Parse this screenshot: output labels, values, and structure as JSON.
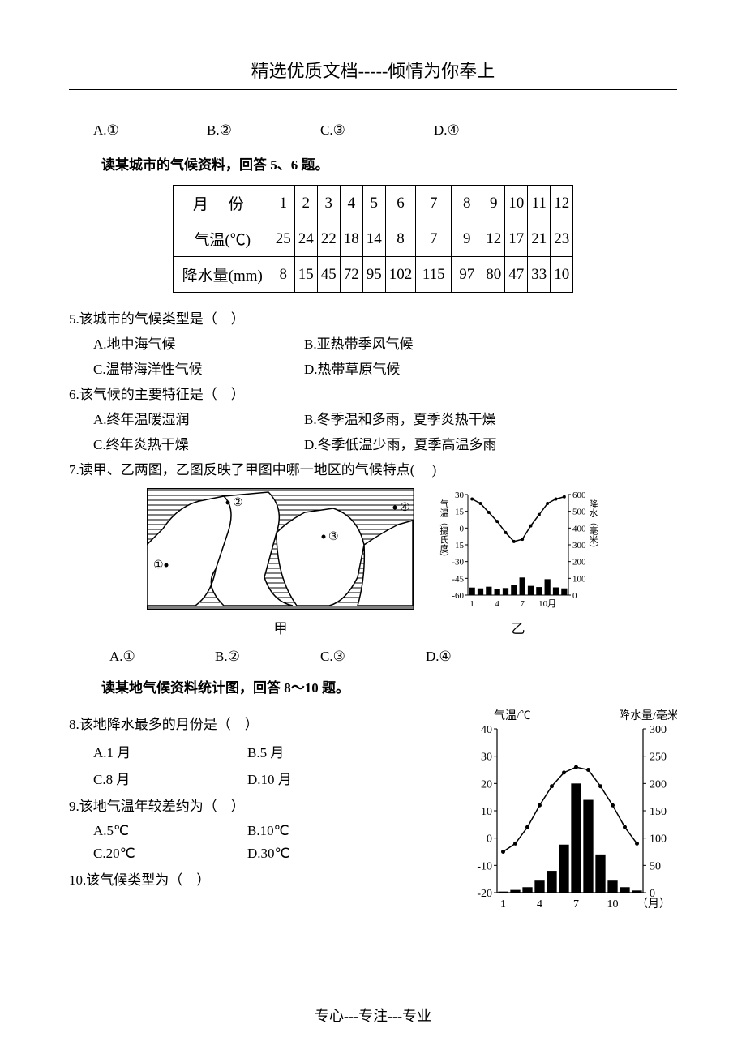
{
  "header": "精选优质文档-----倾情为你奉上",
  "footer": "专心---专注---专业",
  "q4_options": {
    "a": "A.①",
    "b": "B.②",
    "c": "C.③",
    "d": "D.④"
  },
  "instr_56": "读某城市的气候资料，回答 5、6 题。",
  "table": {
    "row_labels": [
      "月 份",
      "气温(℃)",
      "降水量(mm)"
    ],
    "months": [
      "1",
      "2",
      "3",
      "4",
      "5",
      "6",
      "7",
      "8",
      "9",
      "10",
      "11",
      "12"
    ],
    "temp": [
      "25",
      "24",
      "22",
      "18",
      "14",
      "8",
      "7",
      "9",
      "12",
      "17",
      "21",
      "23"
    ],
    "precip": [
      "8",
      "15",
      "45",
      "72",
      "95",
      "102",
      "115",
      "97",
      "80",
      "47",
      "33",
      "10"
    ],
    "col_widths": [
      "122",
      "28",
      "28",
      "28",
      "28",
      "28",
      "34",
      "44",
      "38",
      "28",
      "28",
      "28",
      "28"
    ]
  },
  "q5": {
    "stem": "5.该城市的气候类型是（　）",
    "a": "A.地中海气候",
    "b": "B.亚热带季风气候",
    "c": "C.温带海洋性气候",
    "d": "D.热带草原气候"
  },
  "q6": {
    "stem": "6.该气候的主要特征是（　）",
    "a": "A.终年温暖湿润",
    "b": "B.冬季温和多雨，夏季炎热干燥",
    "c": "C.终年炎热干燥",
    "d": "D.冬季低温少雨，夏季高温多雨"
  },
  "q7": {
    "stem": "7.读甲、乙两图，乙图反映了甲图中哪一地区的气候特点(　 )",
    "a": "A.①",
    "b": "B.②",
    "c": "C.③",
    "d": "D.④"
  },
  "map": {
    "label": "甲",
    "markers": [
      "①",
      "②",
      "③",
      "④"
    ],
    "stroke": "#000000",
    "hatch_gap": 6
  },
  "chart_yi": {
    "label": "乙",
    "y1_label": "气温（摄氏度）",
    "y2_label": "降水（毫米）",
    "y1_ticks": [
      "30",
      "15",
      "0",
      "-15",
      "-30",
      "-45",
      "-60"
    ],
    "y2_ticks": [
      "600",
      "500",
      "400",
      "300",
      "200",
      "100",
      "0"
    ],
    "x_ticks": [
      "1",
      "4",
      "7",
      "10月"
    ],
    "temp_curve": [
      26,
      22,
      14,
      6,
      -4,
      -12,
      -10,
      2,
      12,
      22,
      26,
      28
    ],
    "bars": [
      45,
      40,
      50,
      38,
      42,
      60,
      105,
      55,
      48,
      95,
      46,
      40
    ],
    "bar_max": 600,
    "colors": {
      "stroke": "#000000",
      "fill": "#000000"
    }
  },
  "instr_810": "读某地气候资料统计图，回答 8～10 题。",
  "q8": {
    "stem": "8.该地降水最多的月份是（　）",
    "a": "A.1 月",
    "b": "B.5 月",
    "c": "C.8 月",
    "d": "D.10 月"
  },
  "q9": {
    "stem": "9.该地气温年较差约为（　）",
    "a": "A.5℃",
    "b": "B.10℃",
    "c": "C.20℃",
    "d": "D.30℃"
  },
  "q10": {
    "stem": "10.该气候类型为（　）"
  },
  "chart_big": {
    "y1_label": "气温/℃",
    "y2_label": "降水量/毫米",
    "x_label": "（月）",
    "y1_ticks": [
      "40",
      "30",
      "20",
      "10",
      "0",
      "-10",
      "-20"
    ],
    "y2_ticks": [
      "300",
      "250",
      "200",
      "150",
      "100",
      "50",
      "0"
    ],
    "x_ticks": [
      "1",
      "4",
      "7",
      "10"
    ],
    "temp_curve": [
      -5,
      -2,
      4,
      12,
      19,
      24,
      26,
      25,
      19,
      12,
      4,
      -2
    ],
    "bars": [
      2,
      5,
      10,
      22,
      40,
      88,
      200,
      170,
      70,
      22,
      10,
      4
    ],
    "bar_max": 300,
    "colors": {
      "stroke": "#000000",
      "fill": "#000000",
      "tick": "#000000"
    }
  }
}
